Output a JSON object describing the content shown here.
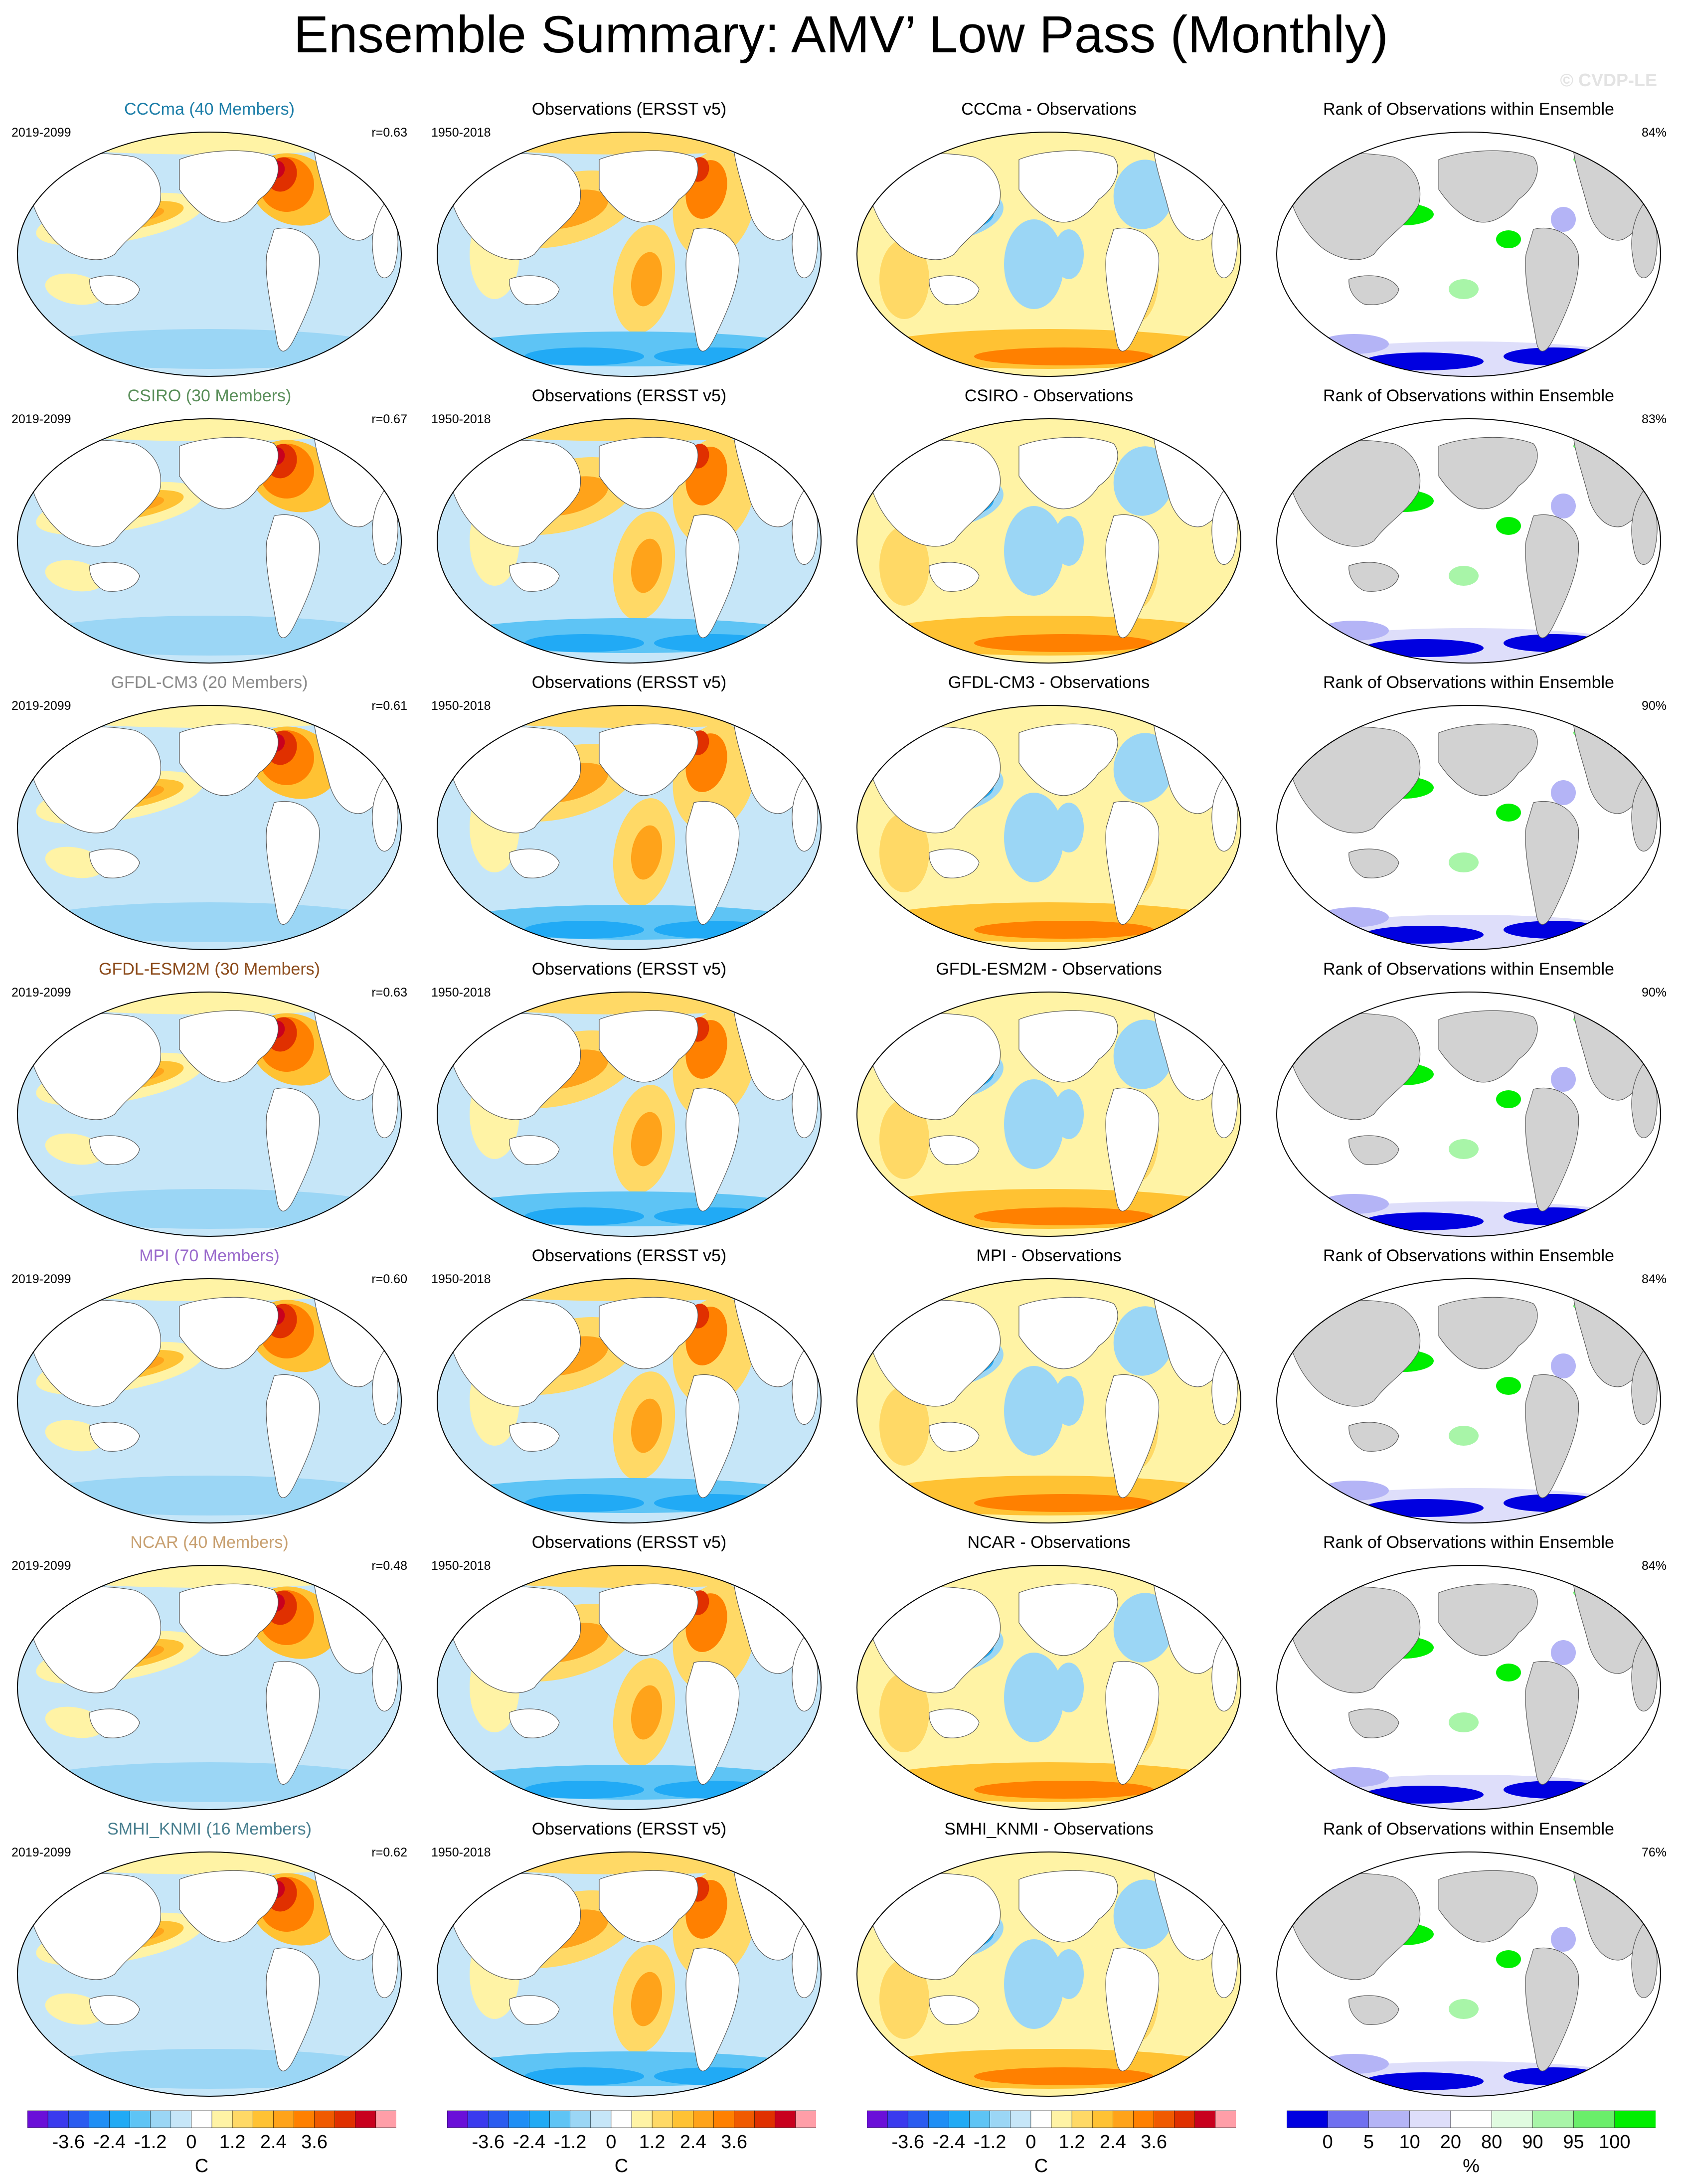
{
  "title": "Ensemble Summary: AMV’ Low Pass (Monthly)",
  "copyright": "© CVDP-LE",
  "colors": {
    "model_names": [
      "#1d7ea8",
      "#5a8f5a",
      "#8a8a8a",
      "#8b4a1a",
      "#9a6acc",
      "#c8a070",
      "#4a8090"
    ],
    "diverging": [
      "#6a0fd8",
      "#3a3aee",
      "#2a5cf0",
      "#1f8ef5",
      "#21aaf5",
      "#5ec4f5",
      "#9bd6f5",
      "#c6e6f8",
      "#ffffff",
      "#fff3a5",
      "#ffd966",
      "#ffc233",
      "#ffa31a",
      "#ff8000",
      "#f05a00",
      "#e03000",
      "#c8001e",
      "#ff9ea8"
    ],
    "rank": [
      "#0000e0",
      "#7070f0",
      "#b4b4f6",
      "#dedefa",
      "#ffffff",
      "#e0fbe0",
      "#a8f5a8",
      "#6aee6a",
      "#00ee00"
    ],
    "land": "#d2d2d2",
    "ocean_default": "#c6e6f8"
  },
  "rows": [
    {
      "model": "CCCma",
      "members_label": "CCCma (40 Members)",
      "period": "2019-2099",
      "r": "r=0.63",
      "obs_title": "Observations (ERSST v5)",
      "obs_period": "1950-2018",
      "diff_title": "CCCma - Observations",
      "rank_title": "Rank of Observations within Ensemble",
      "rank_pct": "84%"
    },
    {
      "model": "CSIRO",
      "members_label": "CSIRO (30 Members)",
      "period": "2019-2099",
      "r": "r=0.67",
      "obs_title": "Observations (ERSST v5)",
      "obs_period": "1950-2018",
      "diff_title": "CSIRO - Observations",
      "rank_title": "Rank of Observations within Ensemble",
      "rank_pct": "83%"
    },
    {
      "model": "GFDL-CM3",
      "members_label": "GFDL-CM3 (20 Members)",
      "period": "2019-2099",
      "r": "r=0.61",
      "obs_title": "Observations (ERSST v5)",
      "obs_period": "1950-2018",
      "diff_title": "GFDL-CM3 - Observations",
      "rank_title": "Rank of Observations within Ensemble",
      "rank_pct": "90%"
    },
    {
      "model": "GFDL-ESM2M",
      "members_label": "GFDL-ESM2M (30 Members)",
      "period": "2019-2099",
      "r": "r=0.63",
      "obs_title": "Observations (ERSST v5)",
      "obs_period": "1950-2018",
      "diff_title": "GFDL-ESM2M - Observations",
      "rank_title": "Rank of Observations within Ensemble",
      "rank_pct": "90%"
    },
    {
      "model": "MPI",
      "members_label": "MPI (70 Members)",
      "period": "2019-2099",
      "r": "r=0.60",
      "obs_title": "Observations (ERSST v5)",
      "obs_period": "1950-2018",
      "diff_title": "MPI - Observations",
      "rank_title": "Rank of Observations within Ensemble",
      "rank_pct": "84%"
    },
    {
      "model": "NCAR",
      "members_label": "NCAR (40 Members)",
      "period": "2019-2099",
      "r": "r=0.48",
      "obs_title": "Observations (ERSST v5)",
      "obs_period": "1950-2018",
      "diff_title": "NCAR - Observations",
      "rank_title": "Rank of Observations within Ensemble",
      "rank_pct": "84%"
    },
    {
      "model": "SMHI_KNMI",
      "members_label": "SMHI_KNMI (16 Members)",
      "period": "2019-2099",
      "r": "r=0.62",
      "obs_title": "Observations (ERSST v5)",
      "obs_period": "1950-2018",
      "diff_title": "SMHI_KNMI - Observations",
      "rank_title": "Rank of Observations within Ensemble",
      "rank_pct": "76%"
    }
  ],
  "colorbars": {
    "sst": {
      "ticks": [
        "-3.6",
        "-2.4",
        "-1.2",
        "0",
        "1.2",
        "2.4",
        "3.6"
      ],
      "unit": "C"
    },
    "rank": {
      "ticks": [
        "0",
        "5",
        "10",
        "20",
        "80",
        "90",
        "95",
        "100"
      ],
      "unit": "%"
    }
  }
}
